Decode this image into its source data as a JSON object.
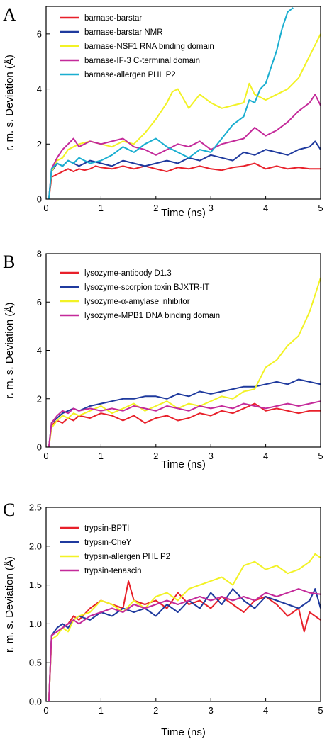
{
  "chart_data": [
    {
      "panel": "A",
      "type": "line",
      "xlabel": "Time (ns)",
      "ylabel": "r. m. s. Deviation (Å)",
      "xlim": [
        0,
        5
      ],
      "ylim": [
        0,
        7
      ],
      "xticks": [
        "0",
        "1",
        "2",
        "3",
        "4",
        "5"
      ],
      "yticks": [
        "0",
        "2",
        "4",
        "6"
      ],
      "xtick_values": [
        0,
        1,
        2,
        3,
        4,
        5
      ],
      "ytick_values": [
        0,
        2,
        4,
        6
      ],
      "legend_position": "top-left",
      "series": [
        {
          "name": "barnase-barstar",
          "color": "#e8202a",
          "x": [
            0.05,
            0.1,
            0.2,
            0.3,
            0.4,
            0.5,
            0.6,
            0.7,
            0.8,
            0.9,
            1.0,
            1.2,
            1.4,
            1.6,
            1.8,
            2.0,
            2.2,
            2.4,
            2.6,
            2.8,
            3.0,
            3.2,
            3.4,
            3.6,
            3.8,
            4.0,
            4.2,
            4.4,
            4.6,
            4.8,
            5.0
          ],
          "y": [
            0.0,
            0.8,
            0.9,
            1.0,
            1.1,
            1.0,
            1.1,
            1.05,
            1.1,
            1.2,
            1.15,
            1.1,
            1.2,
            1.1,
            1.2,
            1.1,
            1.0,
            1.15,
            1.1,
            1.2,
            1.1,
            1.05,
            1.15,
            1.2,
            1.3,
            1.1,
            1.2,
            1.1,
            1.15,
            1.1,
            1.1
          ]
        },
        {
          "name": "barnase-barstar NMR",
          "color": "#1f3a9e",
          "x": [
            0.05,
            0.1,
            0.2,
            0.3,
            0.4,
            0.5,
            0.6,
            0.7,
            0.8,
            1.0,
            1.2,
            1.4,
            1.6,
            1.8,
            2.0,
            2.2,
            2.4,
            2.6,
            2.8,
            3.0,
            3.2,
            3.4,
            3.6,
            3.8,
            4.0,
            4.2,
            4.4,
            4.6,
            4.8,
            4.9,
            5.0
          ],
          "y": [
            0.0,
            1.0,
            1.3,
            1.2,
            1.4,
            1.3,
            1.2,
            1.3,
            1.4,
            1.3,
            1.2,
            1.4,
            1.3,
            1.2,
            1.3,
            1.4,
            1.3,
            1.5,
            1.4,
            1.6,
            1.5,
            1.4,
            1.7,
            1.6,
            1.8,
            1.7,
            1.6,
            1.8,
            1.9,
            2.1,
            1.8
          ]
        },
        {
          "name": "barnase-NSF1 RNA binding domain",
          "color": "#f2f225",
          "x": [
            0.05,
            0.1,
            0.2,
            0.3,
            0.4,
            0.5,
            0.6,
            0.8,
            1.0,
            1.2,
            1.4,
            1.6,
            1.8,
            2.0,
            2.2,
            2.3,
            2.4,
            2.6,
            2.8,
            3.0,
            3.2,
            3.4,
            3.6,
            3.7,
            3.8,
            4.0,
            4.2,
            4.4,
            4.6,
            4.8,
            5.0
          ],
          "y": [
            0.0,
            1.0,
            1.4,
            1.5,
            1.8,
            1.9,
            2.0,
            2.1,
            2.0,
            1.9,
            2.1,
            2.0,
            2.4,
            2.9,
            3.5,
            3.9,
            4.0,
            3.3,
            3.8,
            3.5,
            3.3,
            3.4,
            3.5,
            4.2,
            3.8,
            3.6,
            3.8,
            4.0,
            4.4,
            5.2,
            6.0
          ]
        },
        {
          "name": "barnase-IF-3 C-terminal domain",
          "color": "#c42a9a",
          "x": [
            0.05,
            0.1,
            0.2,
            0.3,
            0.4,
            0.5,
            0.6,
            0.8,
            1.0,
            1.2,
            1.4,
            1.6,
            1.8,
            2.0,
            2.2,
            2.4,
            2.6,
            2.8,
            3.0,
            3.2,
            3.4,
            3.6,
            3.8,
            4.0,
            4.2,
            4.4,
            4.6,
            4.8,
            4.9,
            5.0
          ],
          "y": [
            0.0,
            1.1,
            1.5,
            1.8,
            2.0,
            2.2,
            1.9,
            2.1,
            2.0,
            2.1,
            2.2,
            1.9,
            1.8,
            1.6,
            1.8,
            2.0,
            1.9,
            2.1,
            1.8,
            2.0,
            2.1,
            2.2,
            2.6,
            2.3,
            2.5,
            2.8,
            3.2,
            3.5,
            3.8,
            3.4
          ]
        },
        {
          "name": "barnase-allergen PHL P2",
          "color": "#1aaed0",
          "x": [
            0.05,
            0.1,
            0.2,
            0.3,
            0.4,
            0.5,
            0.6,
            0.8,
            1.0,
            1.2,
            1.4,
            1.6,
            1.8,
            2.0,
            2.2,
            2.4,
            2.6,
            2.8,
            3.0,
            3.2,
            3.4,
            3.6,
            3.7,
            3.8,
            3.9,
            4.0,
            4.1,
            4.2,
            4.3,
            4.4,
            4.5
          ],
          "y": [
            0.0,
            1.1,
            1.3,
            1.2,
            1.4,
            1.3,
            1.5,
            1.3,
            1.4,
            1.6,
            1.9,
            1.7,
            2.0,
            2.2,
            1.9,
            1.7,
            1.5,
            1.8,
            1.7,
            2.2,
            2.7,
            3.0,
            3.6,
            3.5,
            4.0,
            4.2,
            4.8,
            5.4,
            6.2,
            6.8,
            6.95
          ]
        }
      ]
    },
    {
      "panel": "B",
      "type": "line",
      "xlabel": "Time (ns)",
      "ylabel": "r. m. s. Deviation (Å)",
      "xlim": [
        0,
        5
      ],
      "ylim": [
        0,
        8
      ],
      "xticks": [
        "0",
        "1",
        "2",
        "3",
        "4",
        "5"
      ],
      "yticks": [
        "0",
        "2",
        "4",
        "6",
        "8"
      ],
      "xtick_values": [
        0,
        1,
        2,
        3,
        4,
        5
      ],
      "ytick_values": [
        0,
        2,
        4,
        6,
        8
      ],
      "legend_position": "top-left",
      "series": [
        {
          "name": "lysozyme-antibody D1.3",
          "color": "#e8202a",
          "x": [
            0.05,
            0.1,
            0.2,
            0.3,
            0.4,
            0.5,
            0.6,
            0.8,
            1.0,
            1.2,
            1.4,
            1.6,
            1.8,
            2.0,
            2.2,
            2.4,
            2.6,
            2.8,
            3.0,
            3.2,
            3.4,
            3.6,
            3.8,
            4.0,
            4.2,
            4.4,
            4.6,
            4.8,
            5.0
          ],
          "y": [
            0.0,
            0.9,
            1.1,
            1.0,
            1.2,
            1.1,
            1.3,
            1.2,
            1.4,
            1.3,
            1.1,
            1.3,
            1.0,
            1.2,
            1.3,
            1.1,
            1.2,
            1.4,
            1.3,
            1.5,
            1.4,
            1.6,
            1.8,
            1.5,
            1.6,
            1.5,
            1.4,
            1.5,
            1.5
          ]
        },
        {
          "name": "lysozyme-scorpion toxin BJXTR-IT",
          "color": "#1f3a9e",
          "x": [
            0.05,
            0.1,
            0.2,
            0.3,
            0.4,
            0.5,
            0.6,
            0.8,
            1.0,
            1.2,
            1.4,
            1.6,
            1.8,
            2.0,
            2.2,
            2.4,
            2.6,
            2.8,
            3.0,
            3.2,
            3.4,
            3.6,
            3.8,
            4.0,
            4.2,
            4.4,
            4.6,
            4.8,
            5.0
          ],
          "y": [
            0.0,
            1.0,
            1.2,
            1.4,
            1.5,
            1.6,
            1.5,
            1.7,
            1.8,
            1.9,
            2.0,
            2.0,
            2.1,
            2.1,
            2.0,
            2.2,
            2.1,
            2.3,
            2.2,
            2.3,
            2.4,
            2.5,
            2.5,
            2.6,
            2.7,
            2.6,
            2.8,
            2.7,
            2.6
          ]
        },
        {
          "name": "lysozyme-α-amylase inhibitor",
          "color": "#f2f225",
          "x": [
            0.05,
            0.1,
            0.2,
            0.3,
            0.4,
            0.5,
            0.6,
            0.8,
            1.0,
            1.2,
            1.4,
            1.6,
            1.8,
            2.0,
            2.2,
            2.4,
            2.6,
            2.8,
            3.0,
            3.2,
            3.4,
            3.6,
            3.8,
            4.0,
            4.2,
            4.4,
            4.6,
            4.8,
            4.9,
            5.0
          ],
          "y": [
            0.0,
            0.8,
            1.1,
            1.3,
            1.2,
            1.4,
            1.3,
            1.5,
            1.7,
            1.4,
            1.6,
            1.8,
            1.5,
            1.7,
            1.9,
            1.6,
            1.8,
            1.7,
            1.9,
            2.1,
            2.0,
            2.3,
            2.4,
            3.3,
            3.6,
            4.2,
            4.6,
            5.6,
            6.3,
            7.0
          ]
        },
        {
          "name": "lysozyme-MPB1 DNA binding domain",
          "color": "#c42a9a",
          "x": [
            0.05,
            0.1,
            0.2,
            0.3,
            0.4,
            0.5,
            0.6,
            0.8,
            1.0,
            1.2,
            1.4,
            1.6,
            1.8,
            2.0,
            2.2,
            2.4,
            2.6,
            2.8,
            3.0,
            3.2,
            3.4,
            3.6,
            3.8,
            4.0,
            4.2,
            4.4,
            4.6,
            4.8,
            5.0
          ],
          "y": [
            0.0,
            1.0,
            1.3,
            1.5,
            1.4,
            1.6,
            1.5,
            1.6,
            1.5,
            1.6,
            1.5,
            1.7,
            1.6,
            1.5,
            1.7,
            1.6,
            1.5,
            1.7,
            1.6,
            1.7,
            1.6,
            1.8,
            1.7,
            1.6,
            1.7,
            1.8,
            1.7,
            1.8,
            1.9
          ]
        }
      ]
    },
    {
      "panel": "C",
      "type": "line",
      "xlabel": "Time (ns)",
      "ylabel": "r. m. s. Deviation (Å)",
      "xlim": [
        0,
        5
      ],
      "ylim": [
        0,
        2.5
      ],
      "xticks": [
        "0",
        "1",
        "2",
        "3",
        "4",
        "5"
      ],
      "yticks": [
        "0.0",
        "0.5",
        "1.0",
        "1.5",
        "2.0",
        "2.5"
      ],
      "xtick_values": [
        0,
        1,
        2,
        3,
        4,
        5
      ],
      "ytick_values": [
        0,
        0.5,
        1.0,
        1.5,
        2.0,
        2.5
      ],
      "legend_position": "top-left",
      "series": [
        {
          "name": "trypsin-BPTI",
          "color": "#e8202a",
          "x": [
            0.05,
            0.1,
            0.2,
            0.3,
            0.4,
            0.5,
            0.6,
            0.8,
            1.0,
            1.2,
            1.4,
            1.5,
            1.6,
            1.8,
            2.0,
            2.2,
            2.4,
            2.6,
            2.8,
            3.0,
            3.2,
            3.4,
            3.6,
            3.8,
            4.0,
            4.2,
            4.4,
            4.6,
            4.7,
            4.8,
            5.0
          ],
          "y": [
            0.0,
            0.85,
            0.9,
            0.95,
            1.0,
            1.1,
            1.05,
            1.2,
            1.3,
            1.25,
            1.2,
            1.55,
            1.3,
            1.25,
            1.3,
            1.2,
            1.4,
            1.25,
            1.3,
            1.2,
            1.35,
            1.25,
            1.15,
            1.3,
            1.35,
            1.25,
            1.1,
            1.2,
            0.9,
            1.15,
            1.05
          ]
        },
        {
          "name": "trypsin-CheY",
          "color": "#1f3a9e",
          "x": [
            0.05,
            0.1,
            0.2,
            0.3,
            0.4,
            0.5,
            0.6,
            0.8,
            1.0,
            1.2,
            1.4,
            1.6,
            1.8,
            2.0,
            2.2,
            2.4,
            2.6,
            2.8,
            3.0,
            3.2,
            3.4,
            3.6,
            3.8,
            4.0,
            4.2,
            4.4,
            4.6,
            4.8,
            4.9,
            5.0
          ],
          "y": [
            0.0,
            0.85,
            0.95,
            1.0,
            0.95,
            1.05,
            1.1,
            1.05,
            1.15,
            1.1,
            1.2,
            1.15,
            1.2,
            1.1,
            1.25,
            1.15,
            1.3,
            1.2,
            1.4,
            1.25,
            1.45,
            1.3,
            1.2,
            1.35,
            1.3,
            1.25,
            1.2,
            1.3,
            1.45,
            1.2
          ]
        },
        {
          "name": "trypsin-allergen PHL P2",
          "color": "#f2f225",
          "x": [
            0.05,
            0.1,
            0.2,
            0.3,
            0.4,
            0.5,
            0.6,
            0.8,
            1.0,
            1.2,
            1.4,
            1.6,
            1.8,
            2.0,
            2.2,
            2.4,
            2.6,
            2.8,
            3.0,
            3.2,
            3.4,
            3.6,
            3.8,
            4.0,
            4.2,
            4.4,
            4.6,
            4.8,
            4.9,
            5.0
          ],
          "y": [
            0.0,
            0.8,
            0.85,
            0.95,
            0.9,
            1.05,
            1.1,
            1.15,
            1.3,
            1.25,
            1.15,
            1.3,
            1.2,
            1.35,
            1.4,
            1.3,
            1.45,
            1.5,
            1.55,
            1.6,
            1.5,
            1.75,
            1.8,
            1.7,
            1.75,
            1.65,
            1.7,
            1.8,
            1.9,
            1.85
          ]
        },
        {
          "name": "trypsin-tenascin",
          "color": "#c42a9a",
          "x": [
            0.05,
            0.1,
            0.2,
            0.3,
            0.4,
            0.5,
            0.6,
            0.8,
            1.0,
            1.2,
            1.4,
            1.6,
            1.8,
            2.0,
            2.2,
            2.4,
            2.6,
            2.8,
            3.0,
            3.2,
            3.4,
            3.6,
            3.8,
            4.0,
            4.2,
            4.4,
            4.6,
            4.8,
            5.0
          ],
          "y": [
            0.0,
            0.85,
            0.9,
            0.95,
            1.0,
            1.05,
            1.0,
            1.1,
            1.15,
            1.2,
            1.15,
            1.25,
            1.2,
            1.25,
            1.3,
            1.25,
            1.3,
            1.35,
            1.3,
            1.35,
            1.3,
            1.35,
            1.3,
            1.4,
            1.35,
            1.4,
            1.45,
            1.4,
            1.38
          ]
        }
      ]
    }
  ]
}
